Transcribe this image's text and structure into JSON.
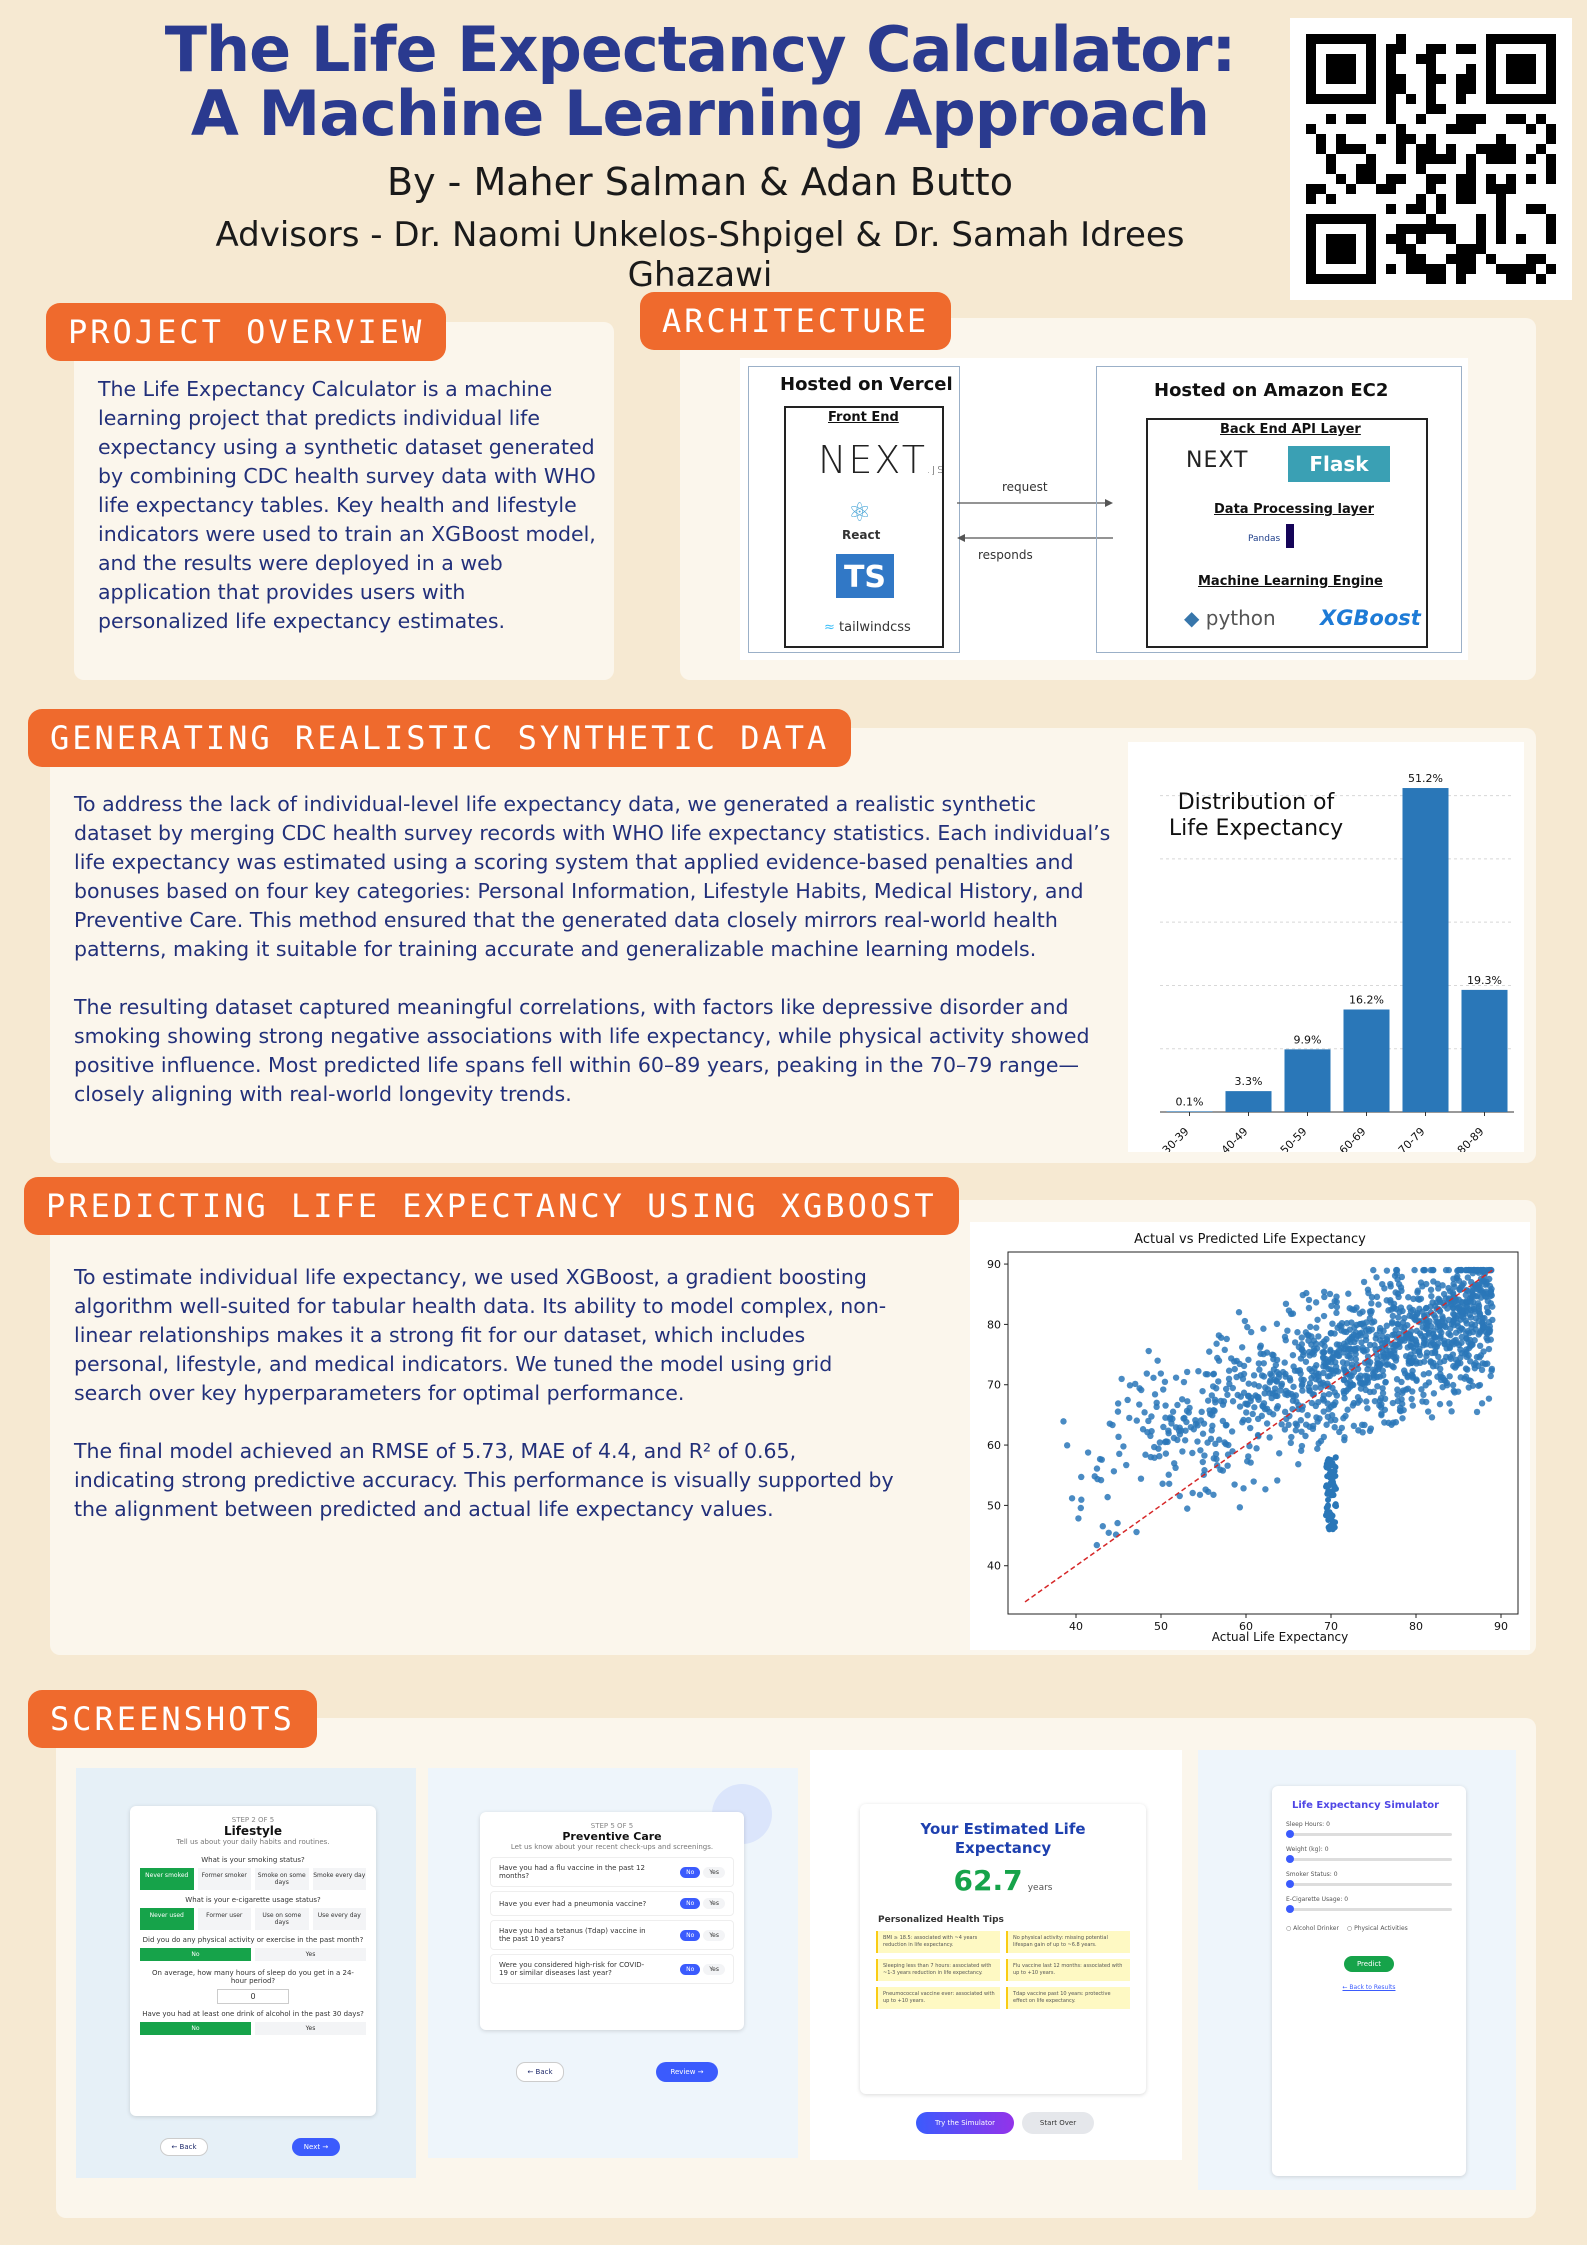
{
  "header": {
    "title_line1": "The Life Expectancy Calculator:",
    "title_line2": "A Machine Learning Approach",
    "authors": "By - Maher Salman & Adan Butto",
    "advisors": "Advisors -  Dr. Naomi Unkelos-Shpigel & Dr. Samah Idrees Ghazawi"
  },
  "overview": {
    "heading": "PROJECT OVERVIEW",
    "text": "The Life Expectancy Calculator is a machine learning project that predicts individual life expectancy using a synthetic dataset generated by combining CDC health survey data with WHO life expectancy tables. Key health and lifestyle indicators were used to train an XGBoost model, and the results were deployed in a web application that provides users with personalized life expectancy estimates."
  },
  "architecture": {
    "heading": "ARCHITECTURE",
    "vercel_title": "Hosted on Vercel",
    "front_end": "Front End",
    "next": "NEXT",
    "next_js": ".JS",
    "react": "React",
    "ts": "TS",
    "tailwind": "tailwindcss",
    "request": "request",
    "responds": "responds",
    "ec2_title": "Hosted on Amazon EC2",
    "backend": "Back End API Layer",
    "flask": "Flask",
    "data_layer": "Data Processing layer",
    "pandas": "Pandas",
    "ml_engine": "Machine Learning Engine",
    "python": "python",
    "xgboost": "XGBoost"
  },
  "synthetic": {
    "heading": "GENERATING REALISTIC SYNTHETIC DATA",
    "p1": "To address the lack of individual-level life expectancy data, we generated a realistic synthetic dataset by merging CDC health survey records with WHO life expectancy statistics. Each individual’s life expectancy was estimated using a scoring system that applied evidence-based penalties and bonuses based on four key categories: Personal Information, Lifestyle Habits, Medical History, and Preventive Care. This method ensured that the generated data closely mirrors real-world health patterns, making it suitable for training accurate and generalizable machine learning models.",
    "p2": "The resulting dataset captured meaningful correlations, with factors like depressive disorder and smoking showing strong negative associations with life expectancy, while physical activity showed positive influence. Most predicted life spans fell within 60–89 years, peaking in the 70–79 range—closely aligning with real-world longevity trends."
  },
  "xgb": {
    "heading": "PREDICTING LIFE EXPECTANCY USING XGBOOST",
    "p1": "To estimate individual life expectancy, we used XGBoost, a gradient boosting algorithm well-suited for tabular health data. Its ability to model complex, non-linear relationships makes it a strong fit for our dataset, which includes personal, lifestyle, and medical indicators. We tuned the model using grid search over key hyperparameters for optimal performance.",
    "p2": "The final model achieved an RMSE of 5.73, MAE of 4.4, and R² of 0.65, indicating strong predictive accuracy. This performance is visually supported by the alignment between predicted and actual life expectancy values."
  },
  "chart_data": [
    {
      "type": "bar",
      "title": "Distribution of Life Expectancy",
      "categories": [
        "30-39",
        "40-49",
        "50-59",
        "60-69",
        "70-79",
        "80-89"
      ],
      "values": [
        0.1,
        3.3,
        9.9,
        16.2,
        51.2,
        19.3
      ],
      "data_labels": [
        "0.1%",
        "3.3%",
        "9.9%",
        "16.2%",
        "51.2%",
        "19.3%"
      ],
      "ylim": [
        0,
        55
      ],
      "grid": true,
      "color": "#2a77b8"
    },
    {
      "type": "scatter",
      "title": "Actual vs Predicted Life Expectancy",
      "xlabel": "Actual Life Expectancy",
      "ylabel": "",
      "xlim": [
        32,
        92
      ],
      "ylim": [
        32,
        92
      ],
      "xticks": [
        40,
        50,
        60,
        70,
        80,
        90
      ],
      "yticks": [
        40,
        50,
        60,
        70,
        80,
        90
      ],
      "reference_line": "y = x",
      "color": "#2a77b8",
      "line_color": "#d62728"
    }
  ],
  "screenshots": {
    "heading": "SCREENSHOTS",
    "s1": {
      "step": "STEP 2 OF 5",
      "title": "Lifestyle",
      "sub": "Tell us about your daily habits and routines.",
      "q1": "What is your smoking status?",
      "q1_opts": [
        "Never smoked",
        "Former smoker",
        "Smoke on some days",
        "Smoke every day"
      ],
      "q2": "What is your e-cigarette usage status?",
      "q2_opts": [
        "Never used",
        "Former user",
        "Use on some days",
        "Use every day"
      ],
      "q3": "Did you do any physical activity or exercise in the past month?",
      "q3_opts": [
        "No",
        "Yes"
      ],
      "q4": "On average, how many hours of sleep do you get in a 24-hour period?",
      "q4_val": "0",
      "q5": "Have you had at least one drink of alcohol in the past 30 days?",
      "q5_opts": [
        "No",
        "Yes"
      ],
      "back": "← Back",
      "next": "Next →"
    },
    "s2": {
      "step": "STEP 5 OF 5",
      "title": "Preventive Care",
      "sub": "Let us know about your recent check-ups and screenings.",
      "questions": [
        "Have you had a flu vaccine in the past 12 months?",
        "Have you ever had a pneumonia vaccine?",
        "Have you had a tetanus (Tdap) vaccine in the past 10 years?",
        "Were you considered high-risk for COVID-19 or similar diseases last year?"
      ],
      "no": "No",
      "yes": "Yes",
      "back": "← Back",
      "review": "Review →"
    },
    "s3": {
      "title": "Your Estimated Life Expectancy",
      "value": "62.7",
      "unit": "years",
      "tips_title": "Personalized Health Tips",
      "tips": [
        "BMI ≥ 18.5: associated with ~4 years reduction in life expectancy.",
        "No physical activity: missing potential lifespan gain of up to ~6.8 years.",
        "Sleeping less than 7 hours: associated with ~1-3 years reduction in life expectancy.",
        "Flu vaccine last 12 months: associated with up to +10 years.",
        "Pneumococcal vaccine ever: associated with up to +10 years.",
        "Tdap vaccine past 10 years: protective effect on life expectancy."
      ],
      "try": "Try the Simulator",
      "start": "Start Over"
    },
    "s4": {
      "title": "Life Expectancy Simulator",
      "sleep": "Sleep Hours: 0",
      "weight": "Weight (kg): 0",
      "smoker": "Smoker Status: 0",
      "ecig": "E-Cigarette Usage: 0",
      "alcohol": "Alcohol Drinker",
      "physical": "Physical Activities",
      "predict": "Predict",
      "back": "← Back to Results"
    }
  }
}
